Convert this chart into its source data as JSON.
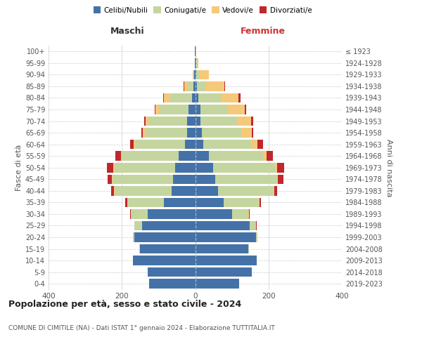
{
  "age_groups": [
    "0-4",
    "5-9",
    "10-14",
    "15-19",
    "20-24",
    "25-29",
    "30-34",
    "35-39",
    "40-44",
    "45-49",
    "50-54",
    "55-59",
    "60-64",
    "65-69",
    "70-74",
    "75-79",
    "80-84",
    "85-89",
    "90-94",
    "95-99",
    "100+"
  ],
  "birth_years": [
    "2019-2023",
    "2014-2018",
    "2009-2013",
    "2004-2008",
    "1999-2003",
    "1994-1998",
    "1989-1993",
    "1984-1988",
    "1979-1983",
    "1974-1978",
    "1969-1973",
    "1964-1968",
    "1959-1963",
    "1954-1958",
    "1949-1953",
    "1944-1948",
    "1939-1943",
    "1934-1938",
    "1929-1933",
    "1924-1928",
    "≤ 1923"
  ],
  "males": {
    "celibi": [
      125,
      130,
      170,
      150,
      165,
      145,
      130,
      85,
      65,
      60,
      55,
      45,
      28,
      22,
      22,
      18,
      8,
      4,
      2,
      1,
      1
    ],
    "coniugati": [
      0,
      0,
      0,
      2,
      5,
      20,
      45,
      100,
      155,
      165,
      165,
      155,
      135,
      115,
      105,
      80,
      60,
      18,
      3,
      0,
      0
    ],
    "vedovi": [
      0,
      0,
      0,
      0,
      0,
      0,
      0,
      1,
      1,
      2,
      3,
      3,
      5,
      5,
      8,
      10,
      18,
      8,
      2,
      0,
      0
    ],
    "divorziati": [
      0,
      0,
      0,
      0,
      0,
      1,
      2,
      5,
      8,
      12,
      18,
      15,
      10,
      5,
      5,
      2,
      2,
      1,
      0,
      0,
      0
    ]
  },
  "females": {
    "nubili": [
      120,
      155,
      168,
      145,
      165,
      148,
      100,
      78,
      62,
      55,
      48,
      38,
      22,
      18,
      15,
      15,
      8,
      5,
      2,
      2,
      1
    ],
    "coniugate": [
      0,
      0,
      0,
      2,
      5,
      18,
      45,
      95,
      152,
      168,
      170,
      148,
      130,
      108,
      100,
      75,
      62,
      25,
      10,
      2,
      0
    ],
    "vedove": [
      0,
      0,
      0,
      0,
      0,
      0,
      1,
      2,
      2,
      3,
      5,
      8,
      18,
      28,
      38,
      45,
      48,
      50,
      25,
      5,
      1
    ],
    "divorziate": [
      0,
      0,
      0,
      0,
      0,
      1,
      2,
      5,
      8,
      15,
      20,
      18,
      15,
      4,
      5,
      5,
      5,
      2,
      0,
      0,
      0
    ]
  },
  "colors": {
    "celibi": "#4472a8",
    "coniugati": "#c5d5a0",
    "vedovi": "#f5c97a",
    "divorziati": "#c0272d"
  },
  "title": "Popolazione per età, sesso e stato civile - 2024",
  "subtitle": "COMUNE DI CIMITILE (NA) - Dati ISTAT 1° gennaio 2024 - Elaborazione TUTTITALIA.IT",
  "xlabel_left": "Maschi",
  "xlabel_right": "Femmine",
  "ylabel_left": "Fasce di età",
  "ylabel_right": "Anni di nascita",
  "xlim": 400,
  "background_color": "#ffffff"
}
